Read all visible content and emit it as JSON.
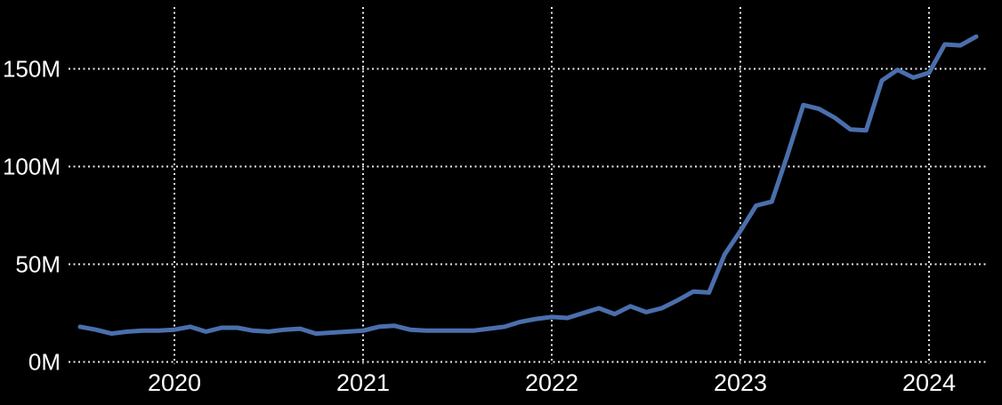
{
  "chart_style": {
    "background_color": "#000000",
    "text_color": "#ffffff",
    "gridline_color": "#ececec",
    "line_color": "#4b6fad",
    "line_width": 5
  },
  "chart_data": {
    "type": "line",
    "title": "",
    "xlabel": "",
    "ylabel": "",
    "unit": "M",
    "grid": "dotted",
    "legend": "none",
    "ylim": [
      0,
      183
    ],
    "xlim_years": [
      2019.44,
      2024.32
    ],
    "y_ticks": [
      {
        "value": 0,
        "label": "0M"
      },
      {
        "value": 50,
        "label": "50M"
      },
      {
        "value": 100,
        "label": "100M"
      },
      {
        "value": 150,
        "label": "150M"
      }
    ],
    "x_ticks": [
      {
        "value": 2020,
        "label": "2020"
      },
      {
        "value": 2021,
        "label": "2021"
      },
      {
        "value": 2022,
        "label": "2022"
      },
      {
        "value": 2023,
        "label": "2023"
      },
      {
        "value": 2024,
        "label": "2024"
      }
    ],
    "x": [
      "2019-07",
      "2019-08",
      "2019-09",
      "2019-10",
      "2019-11",
      "2019-12",
      "2020-01",
      "2020-02",
      "2020-03",
      "2020-04",
      "2020-05",
      "2020-06",
      "2020-07",
      "2020-08",
      "2020-09",
      "2020-10",
      "2020-11",
      "2020-12",
      "2021-01",
      "2021-02",
      "2021-03",
      "2021-04",
      "2021-05",
      "2021-06",
      "2021-07",
      "2021-08",
      "2021-09",
      "2021-10",
      "2021-11",
      "2021-12",
      "2022-01",
      "2022-02",
      "2022-03",
      "2022-04",
      "2022-05",
      "2022-06",
      "2022-07",
      "2022-08",
      "2022-09",
      "2022-10",
      "2022-11",
      "2022-12",
      "2023-01",
      "2023-02",
      "2023-03",
      "2023-04",
      "2023-05",
      "2023-06",
      "2023-07",
      "2023-08",
      "2023-09",
      "2023-10",
      "2023-11",
      "2023-12",
      "2024-01",
      "2024-02",
      "2024-03",
      "2024-04"
    ],
    "series": [
      {
        "name": "",
        "values": [
          18,
          16.5,
          14.5,
          15.5,
          16,
          16,
          16.5,
          18,
          15.5,
          17.5,
          17.5,
          16,
          15.5,
          16.5,
          17,
          14.5,
          15,
          15.5,
          16,
          18,
          18.5,
          16.5,
          16,
          16,
          16,
          16,
          17,
          18,
          20.5,
          22,
          23,
          22.5,
          25,
          27.5,
          24.5,
          28.5,
          25.5,
          27.5,
          31.5,
          36,
          35.5,
          55,
          67,
          80,
          82,
          106,
          131.5,
          129.5,
          125,
          119,
          118.5,
          144,
          149.5,
          145.5,
          148,
          162.5,
          162,
          166.5
        ]
      }
    ]
  }
}
